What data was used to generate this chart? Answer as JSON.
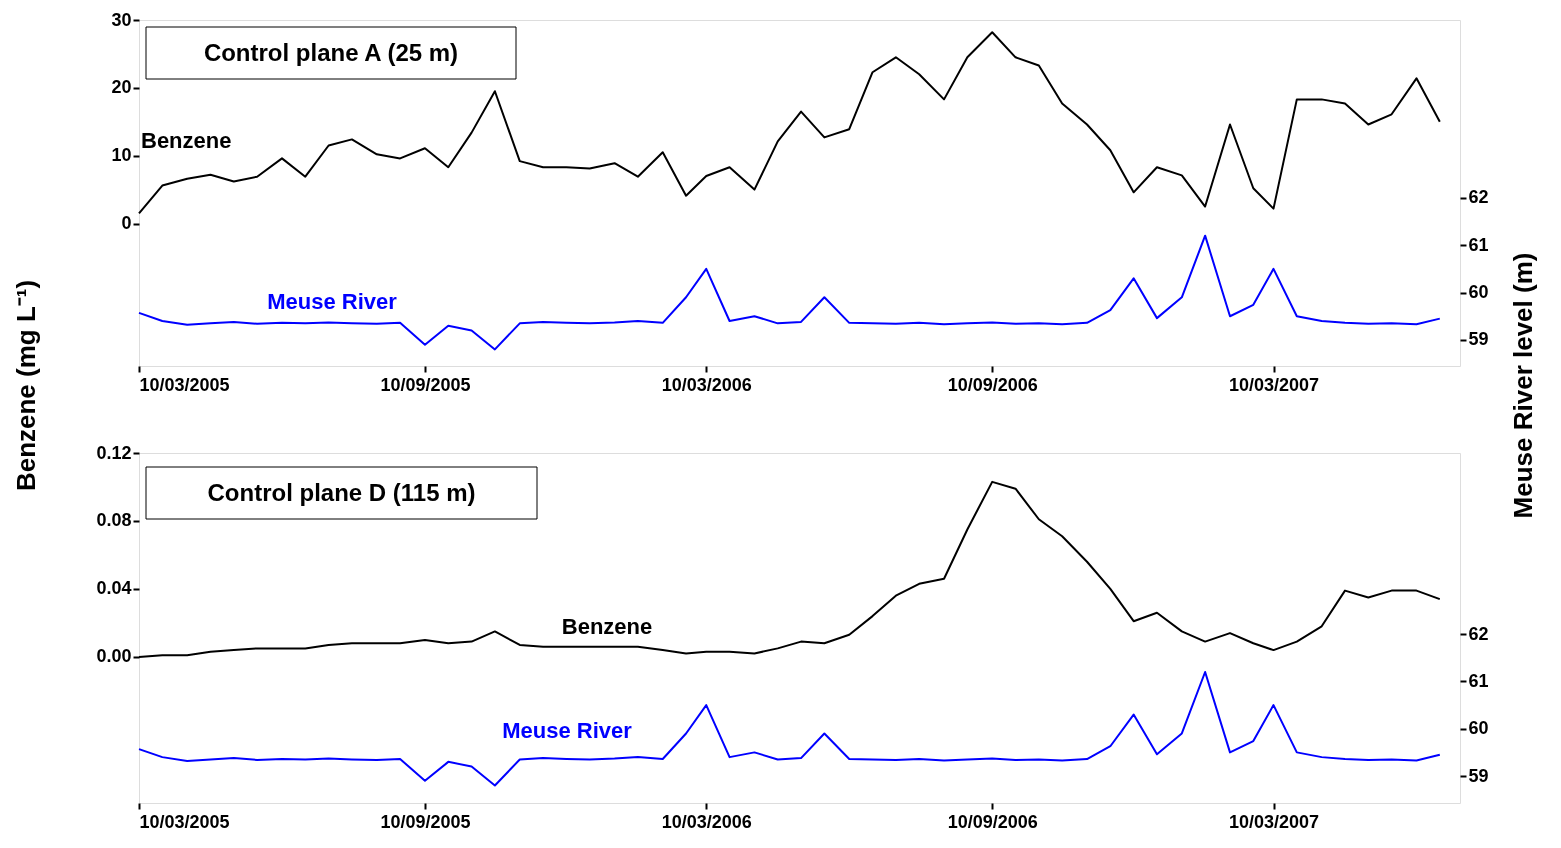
{
  "chart_data": [
    {
      "type": "line",
      "title": "Control plane A (25 m)",
      "ylabel": "Benzene (mg L⁻¹)",
      "y2label": "Meuse River level (m)",
      "x": [
        "2005-03-10",
        "2005-03-25",
        "2005-04-10",
        "2005-04-25",
        "2005-05-10",
        "2005-05-25",
        "2005-06-10",
        "2005-06-25",
        "2005-07-10",
        "2005-07-25",
        "2005-08-10",
        "2005-08-25",
        "2005-09-10",
        "2005-09-25",
        "2005-10-10",
        "2005-10-25",
        "2005-11-10",
        "2005-11-25",
        "2005-12-10",
        "2005-12-25",
        "2006-01-10",
        "2006-01-25",
        "2006-02-10",
        "2006-02-25",
        "2006-03-10",
        "2006-03-25",
        "2006-04-10",
        "2006-04-25",
        "2006-05-10",
        "2006-05-25",
        "2006-06-10",
        "2006-06-25",
        "2006-07-10",
        "2006-07-25",
        "2006-08-10",
        "2006-08-25",
        "2006-09-10",
        "2006-09-25",
        "2006-10-10",
        "2006-10-25",
        "2006-11-10",
        "2006-11-25",
        "2006-12-10",
        "2006-12-25",
        "2007-01-10",
        "2007-01-25",
        "2007-02-10",
        "2007-02-25",
        "2007-03-10",
        "2007-03-25",
        "2007-04-10",
        "2007-04-25",
        "2007-05-10",
        "2007-05-25",
        "2007-06-10",
        "2007-06-25"
      ],
      "xlim": [
        "2005-03-10",
        "2007-07-08"
      ],
      "xticks": [
        {
          "value": "2005-03-10",
          "label": "10/03/2005"
        },
        {
          "value": "2005-09-10",
          "label": "10/09/2005"
        },
        {
          "value": "2006-03-10",
          "label": "10/03/2006"
        },
        {
          "value": "2006-09-10",
          "label": "10/09/2006"
        },
        {
          "value": "2007-03-10",
          "label": "10/03/2007"
        }
      ],
      "ylim": [
        -21,
        30
      ],
      "yticks": [
        0,
        10,
        20,
        30
      ],
      "y2lim": [
        58.45,
        65.75
      ],
      "y2ticks": [
        59,
        60,
        61,
        62
      ],
      "legend": false,
      "line_style": "solid",
      "series": [
        {
          "name": "Benzene",
          "color": "#000000",
          "values": [
            1.5,
            5.6,
            6.6,
            7.2,
            6.2,
            6.9,
            9.6,
            6.9,
            11.5,
            12.4,
            10.2,
            9.6,
            11.1,
            8.3,
            13.4,
            19.5,
            9.2,
            8.3,
            8.3,
            8.1,
            8.9,
            6.9,
            10.5,
            4.1,
            7,
            8.3,
            5.0,
            12.1,
            16.5,
            12.7,
            13.9,
            22.3,
            24.5,
            22.0,
            18.3,
            24.5,
            28.2,
            24.5,
            23.3,
            17.7,
            14.6,
            10.8,
            4.6,
            8.3,
            7.1,
            2.5,
            14.6,
            5.2,
            2.2,
            18.3,
            18.3,
            17.7,
            14.6,
            16.1,
            21.4,
            15.0
          ]
        },
        {
          "name": "Meuse River",
          "color": "#0000ff",
          "axis": "y2",
          "values": [
            59.57,
            59.4,
            59.32,
            59.35,
            59.38,
            59.34,
            59.36,
            59.35,
            59.37,
            59.35,
            59.34,
            59.36,
            58.9,
            59.3,
            59.2,
            58.8,
            59.35,
            59.38,
            59.36,
            59.35,
            59.37,
            59.4,
            59.36,
            59.9,
            60.5,
            59.4,
            59.5,
            59.35,
            59.38,
            59.9,
            59.36,
            59.35,
            59.34,
            59.36,
            59.33,
            59.35,
            59.37,
            59.34,
            59.35,
            59.33,
            59.36,
            59.63,
            60.3,
            59.46,
            59.9,
            61.2,
            59.5,
            59.74,
            60.5,
            59.5,
            59.4,
            59.36,
            59.34,
            59.35,
            59.33,
            59.45
          ]
        }
      ]
    },
    {
      "type": "line",
      "title": "Control plane D (115 m)",
      "x": [
        "2005-03-10",
        "2005-03-25",
        "2005-04-10",
        "2005-04-25",
        "2005-05-10",
        "2005-05-25",
        "2005-06-10",
        "2005-06-25",
        "2005-07-10",
        "2005-07-25",
        "2005-08-10",
        "2005-08-25",
        "2005-09-10",
        "2005-09-25",
        "2005-10-10",
        "2005-10-25",
        "2005-11-10",
        "2005-11-25",
        "2005-12-10",
        "2005-12-25",
        "2006-01-10",
        "2006-01-25",
        "2006-02-10",
        "2006-02-25",
        "2006-03-10",
        "2006-03-25",
        "2006-04-10",
        "2006-04-25",
        "2006-05-10",
        "2006-05-25",
        "2006-06-10",
        "2006-06-25",
        "2006-07-10",
        "2006-07-25",
        "2006-08-10",
        "2006-08-25",
        "2006-09-10",
        "2006-09-25",
        "2006-10-10",
        "2006-10-25",
        "2006-11-10",
        "2006-11-25",
        "2006-12-10",
        "2006-12-25",
        "2007-01-10",
        "2007-01-25",
        "2007-02-10",
        "2007-02-25",
        "2007-03-10",
        "2007-03-25",
        "2007-04-10",
        "2007-04-25",
        "2007-05-10",
        "2007-05-25",
        "2007-06-10",
        "2007-06-25"
      ],
      "xlim": [
        "2005-03-10",
        "2007-07-08"
      ],
      "xticks": [
        {
          "value": "2005-03-10",
          "label": "10/03/2005"
        },
        {
          "value": "2005-09-10",
          "label": "10/09/2005"
        },
        {
          "value": "2006-03-10",
          "label": "10/03/2006"
        },
        {
          "value": "2006-09-10",
          "label": "10/09/2006"
        },
        {
          "value": "2007-03-10",
          "label": "10/03/2007"
        }
      ],
      "ylim": [
        -0.086,
        0.12
      ],
      "yticks": [
        {
          "value": 0,
          "label": "0.00"
        },
        0.04,
        0.08,
        0.12
      ],
      "y2lim": [
        58.43,
        65.83
      ],
      "y2ticks": [
        59,
        60,
        61,
        62
      ],
      "legend": false,
      "line_style": "solid",
      "series": [
        {
          "name": "Benzene",
          "color": "#000000",
          "values": [
            0.0,
            0.001,
            0.001,
            0.003,
            0.004,
            0.005,
            0.005,
            0.005,
            0.007,
            0.008,
            0.008,
            0.008,
            0.01,
            0.008,
            0.009,
            0.015,
            0.007,
            0.006,
            0.006,
            0.006,
            0.006,
            0.006,
            0.004,
            0.002,
            0.003,
            0.003,
            0.002,
            0.005,
            0.009,
            0.008,
            0.013,
            0.024,
            0.036,
            0.043,
            0.046,
            0.075,
            0.103,
            0.099,
            0.081,
            0.071,
            0.056,
            0.04,
            0.021,
            0.026,
            0.015,
            0.009,
            0.014,
            0.008,
            0.004,
            0.009,
            0.018,
            0.039,
            0.035,
            0.039,
            0.039,
            0.034
          ]
        },
        {
          "name": "Meuse River",
          "color": "#0000ff",
          "axis": "y2",
          "values": [
            59.57,
            59.4,
            59.32,
            59.35,
            59.38,
            59.34,
            59.36,
            59.35,
            59.37,
            59.35,
            59.34,
            59.36,
            58.9,
            59.3,
            59.2,
            58.8,
            59.35,
            59.38,
            59.36,
            59.35,
            59.37,
            59.4,
            59.36,
            59.9,
            60.5,
            59.4,
            59.5,
            59.35,
            59.38,
            59.9,
            59.36,
            59.35,
            59.34,
            59.36,
            59.33,
            59.35,
            59.37,
            59.34,
            59.35,
            59.33,
            59.36,
            59.63,
            60.3,
            59.46,
            59.9,
            61.2,
            59.5,
            59.74,
            60.5,
            59.5,
            59.4,
            59.36,
            59.34,
            59.35,
            59.33,
            59.45
          ]
        }
      ]
    }
  ]
}
